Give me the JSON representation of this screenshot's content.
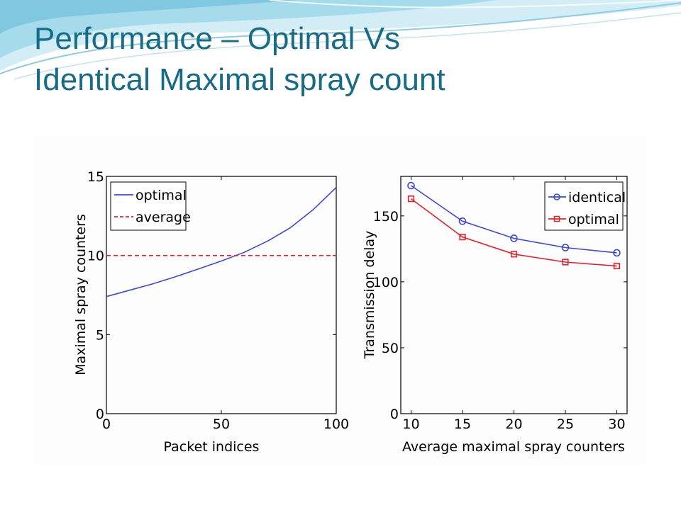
{
  "slide": {
    "title_line1": "Performance – Optimal Vs",
    "title_line2": "Identical Maximal spray count"
  },
  "colors": {
    "title": "#166b86",
    "blue": "#3b46e6",
    "red": "#e8202a",
    "swoosh_light": "#bfe6f2",
    "swoosh_mid": "#7cc7e0"
  },
  "chart_data": [
    {
      "type": "line",
      "xlabel": "Packet indices",
      "ylabel": "Maximal spray counters",
      "xlim": [
        0,
        100
      ],
      "ylim": [
        0,
        15
      ],
      "xticks": [
        0,
        50,
        100
      ],
      "yticks": [
        0,
        5,
        10,
        15
      ],
      "grid": false,
      "legend_position": "top-left",
      "series": [
        {
          "name": "optimal",
          "style": "solid",
          "color": "#3b46e6",
          "x": [
            0,
            10,
            20,
            30,
            40,
            50,
            60,
            70,
            80,
            90,
            100
          ],
          "y": [
            7.4,
            7.8,
            8.2,
            8.65,
            9.15,
            9.65,
            10.2,
            10.9,
            11.75,
            12.9,
            14.3
          ]
        },
        {
          "name": "average",
          "style": "dashed",
          "color": "#e8202a",
          "x": [
            0,
            100
          ],
          "y": [
            10,
            10
          ]
        }
      ]
    },
    {
      "type": "line",
      "xlabel": "Average maximal spray counters",
      "ylabel": "Transmission delay",
      "xlim": [
        9,
        31
      ],
      "ylim": [
        0,
        180
      ],
      "xticks": [
        10,
        15,
        20,
        25,
        30
      ],
      "yticks": [
        0,
        50,
        100,
        150
      ],
      "grid": false,
      "legend_position": "top-right",
      "series": [
        {
          "name": "identical",
          "marker": "circle",
          "color": "#3b46e6",
          "x": [
            10,
            15,
            20,
            25,
            30
          ],
          "y": [
            173,
            146,
            133,
            126,
            122
          ]
        },
        {
          "name": "optimal",
          "marker": "square",
          "color": "#e8202a",
          "x": [
            10,
            15,
            20,
            25,
            30
          ],
          "y": [
            163,
            134,
            121,
            115,
            112
          ]
        }
      ]
    }
  ]
}
